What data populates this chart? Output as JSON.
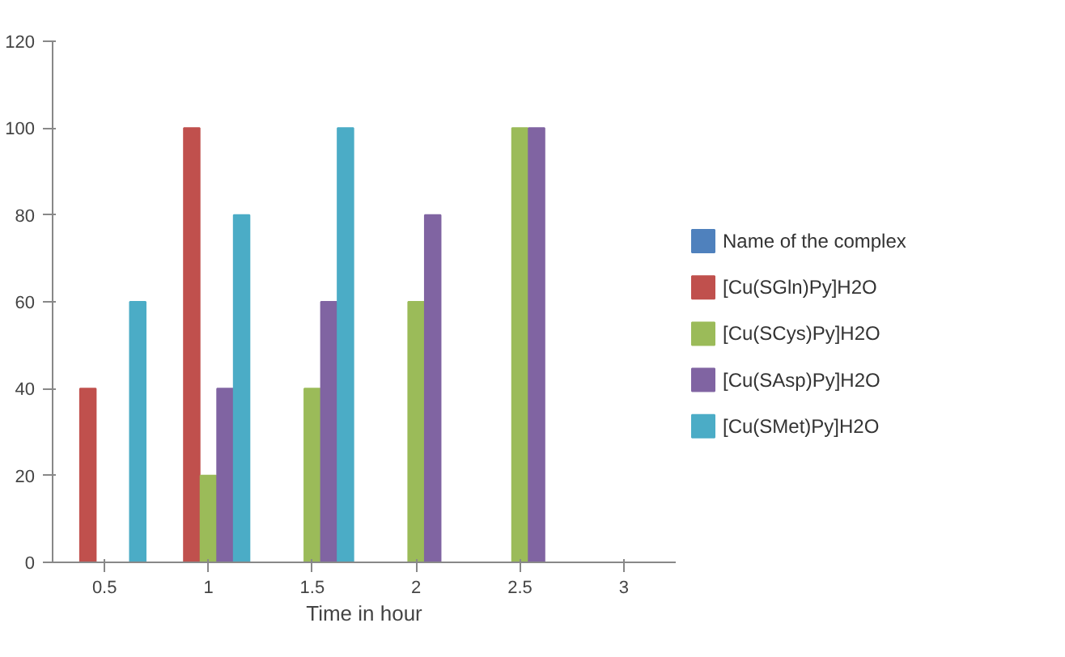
{
  "chart_data": {
    "type": "bar",
    "xlabel": "Time in hour",
    "categories": [
      "0.5",
      "1",
      "1.5",
      "2",
      "2.5",
      "3"
    ],
    "series": [
      {
        "name": "Name of the complex",
        "color": "#4f81bd",
        "values": [
          null,
          null,
          null,
          null,
          null,
          null
        ]
      },
      {
        "name": "[Cu(SGln)Py]H2O",
        "color": "#c0504d",
        "values": [
          40,
          100,
          null,
          null,
          null,
          null
        ]
      },
      {
        "name": "[Cu(SCys)Py]H2O",
        "color": "#9bbb59",
        "values": [
          null,
          20,
          40,
          60,
          100,
          null
        ]
      },
      {
        "name": "[Cu(SAsp)Py]H2O",
        "color": "#8064a2",
        "values": [
          null,
          40,
          60,
          80,
          100,
          null
        ]
      },
      {
        "name": "[Cu(SMet)Py]H2O",
        "color": "#4bacc6",
        "values": [
          60,
          80,
          100,
          null,
          null,
          null
        ]
      }
    ],
    "ylim": [
      0,
      120
    ],
    "yticks": [
      0,
      20,
      40,
      60,
      80,
      100,
      120
    ],
    "legend": "right"
  }
}
